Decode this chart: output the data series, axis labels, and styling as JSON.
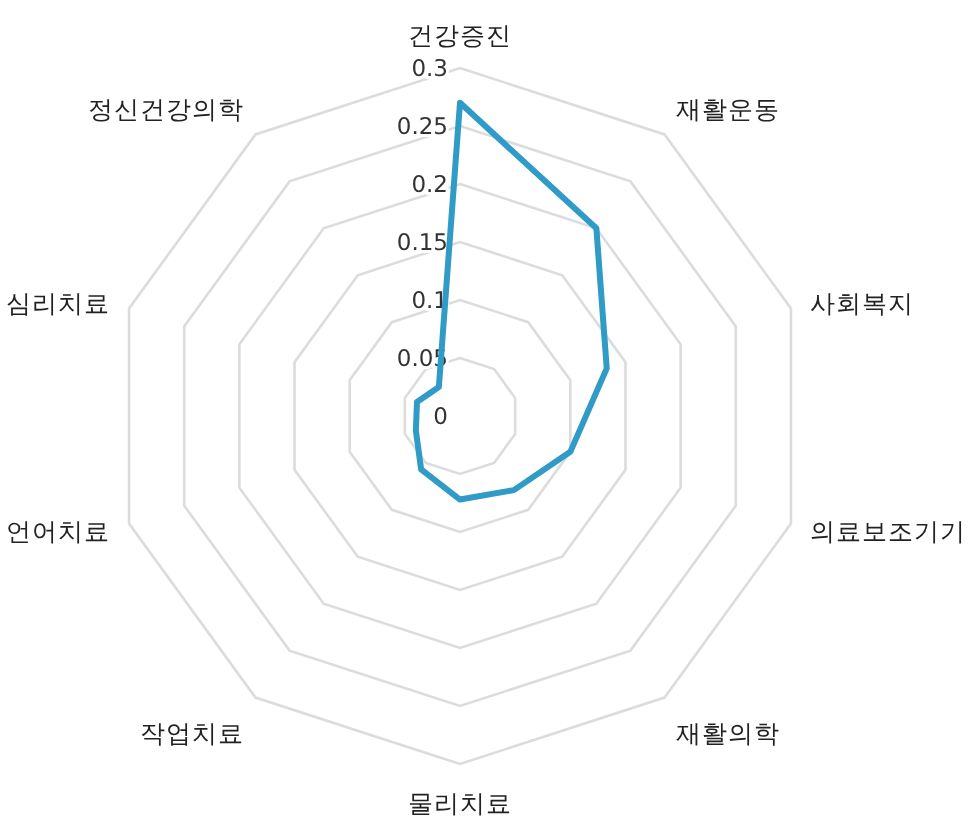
{
  "chart_data": {
    "type": "radar",
    "categories": [
      "건강증진",
      "재활운동",
      "사회복지",
      "의료보조기기",
      "재활의학",
      "물리치료",
      "작업치료",
      "언어치료",
      "심리치료",
      "정신건강의학"
    ],
    "series": [
      {
        "color": "#2f9bc6",
        "values": [
          0.27,
          0.2,
          0.133,
          0.1,
          0.079,
          0.072,
          0.057,
          0.04,
          0.039,
          0.031
        ]
      }
    ],
    "ylim": [
      0,
      0.3
    ],
    "yticks": [
      0,
      0.05,
      0.1,
      0.15,
      0.2,
      0.25,
      0.3
    ],
    "grid": true,
    "marker": "none"
  }
}
